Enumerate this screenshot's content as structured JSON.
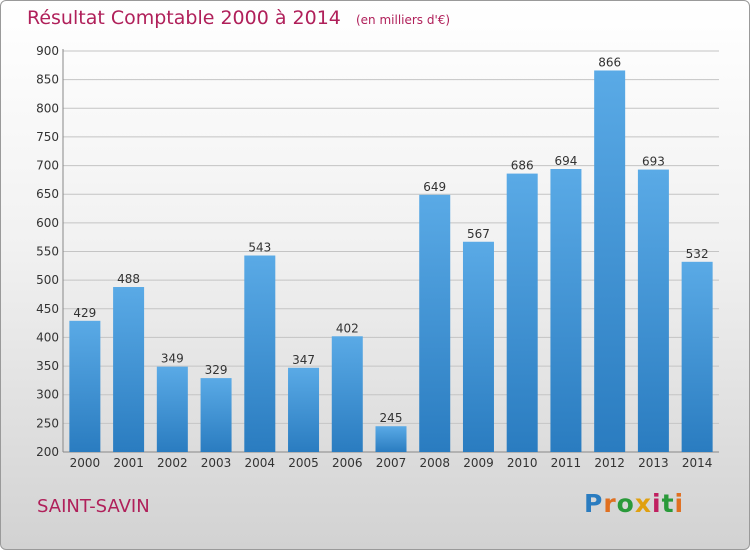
{
  "header": {
    "title": "Résultat Comptable 2000 à 2014",
    "unit": "(en milliers d'€)"
  },
  "footer": {
    "commune": "SAINT-SAVIN",
    "logo": "Proxiti"
  },
  "colors": {
    "title": "#b0205a",
    "bar_top": "#5aaae6",
    "bar_bottom": "#2a7cc0"
  },
  "chart_data": {
    "type": "bar",
    "categories": [
      "2000",
      "2001",
      "2002",
      "2003",
      "2004",
      "2005",
      "2006",
      "2007",
      "2008",
      "2009",
      "2010",
      "2011",
      "2012",
      "2013",
      "2014"
    ],
    "values": [
      429,
      488,
      349,
      329,
      543,
      347,
      402,
      245,
      649,
      567,
      686,
      694,
      866,
      693,
      532
    ],
    "ylim": [
      200,
      900
    ],
    "yticks": [
      200,
      250,
      300,
      350,
      400,
      450,
      500,
      550,
      600,
      650,
      700,
      750,
      800,
      850,
      900
    ],
    "grid": true,
    "legend": "none"
  }
}
